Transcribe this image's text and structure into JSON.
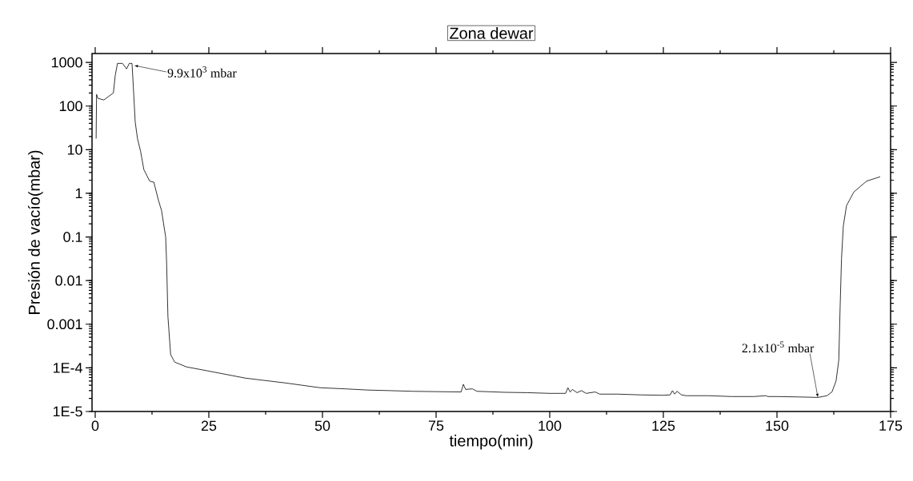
{
  "chart_data": {
    "type": "line",
    "title": "Zona dewar",
    "xlabel": "tiempo(min)",
    "ylabel": "Presión de vacío(mbar)",
    "log": "y",
    "color": "#000000",
    "xlim": [
      -0.7,
      175
    ],
    "xticks": [
      0,
      25,
      50,
      75,
      100,
      125,
      150,
      175
    ],
    "ylim": [
      1e-05,
      1600
    ],
    "yticks": [
      {
        "value": 1e-05,
        "label": "1E-5"
      },
      {
        "value": 0.0001,
        "label": "1E-4"
      },
      0.001,
      0.01,
      0.1,
      1,
      10,
      100,
      1000
    ],
    "x": [
      0.2,
      0.3,
      0.6,
      1.9,
      4.0,
      4.4,
      4.9,
      6.0,
      6.9,
      7.5,
      8.1,
      8.4,
      8.8,
      9.3,
      10.0,
      10.7,
      12.0,
      12.9,
      13.9,
      14.6,
      15.5,
      15.7,
      16.0,
      16.6,
      17.5,
      20.1,
      24.8,
      33.1,
      41.9,
      49.5,
      55,
      60,
      65,
      70,
      75,
      80.5,
      81,
      81.5,
      83,
      84,
      90,
      95,
      100,
      103.5,
      104,
      104.5,
      105,
      106,
      107,
      108,
      110,
      111,
      115,
      120,
      125,
      126.5,
      127,
      127.5,
      128,
      129,
      130,
      135,
      140,
      145,
      147.5,
      148,
      150,
      155,
      159,
      161,
      162.1,
      163.0,
      163.6,
      163.9,
      164.2,
      164.6,
      165.3,
      166.9,
      169.7,
      172.7
    ],
    "values": [
      18,
      185,
      150,
      138,
      200,
      500,
      950,
      950,
      710,
      950,
      950,
      260,
      43,
      18,
      9,
      3.5,
      1.9,
      1.8,
      0.7,
      0.4,
      0.1,
      0.028,
      0.0015,
      0.0002,
      0.000135,
      0.000105,
      8.5e-05,
      5.8e-05,
      4.5e-05,
      3.5e-05,
      3.3e-05,
      3.1e-05,
      3e-05,
      2.9e-05,
      2.85e-05,
      2.8e-05,
      4.2e-05,
      3.2e-05,
      3.3e-05,
      2.9e-05,
      2.75e-05,
      2.7e-05,
      2.6e-05,
      2.6e-05,
      3.5e-05,
      2.8e-05,
      3.2e-05,
      2.7e-05,
      3e-05,
      2.6e-05,
      2.8e-05,
      2.5e-05,
      2.5e-05,
      2.4e-05,
      2.35e-05,
      2.4e-05,
      3e-05,
      2.5e-05,
      2.9e-05,
      2.4e-05,
      2.3e-05,
      2.3e-05,
      2.2e-05,
      2.2e-05,
      2.3e-05,
      2.2e-05,
      2.2e-05,
      2.15e-05,
      2.1e-05,
      2.3e-05,
      2.8e-05,
      5e-05,
      0.00015,
      0.0026,
      0.032,
      0.18,
      0.52,
      1.07,
      1.9,
      2.4
    ],
    "annotations": [
      {
        "text": "9.9x10$^{3}$ mbar",
        "x": 8.6,
        "y": 850
      },
      {
        "text": "2.1x10$^{-5}$ mbar",
        "x": 159,
        "y": 2.1e-05
      }
    ]
  }
}
